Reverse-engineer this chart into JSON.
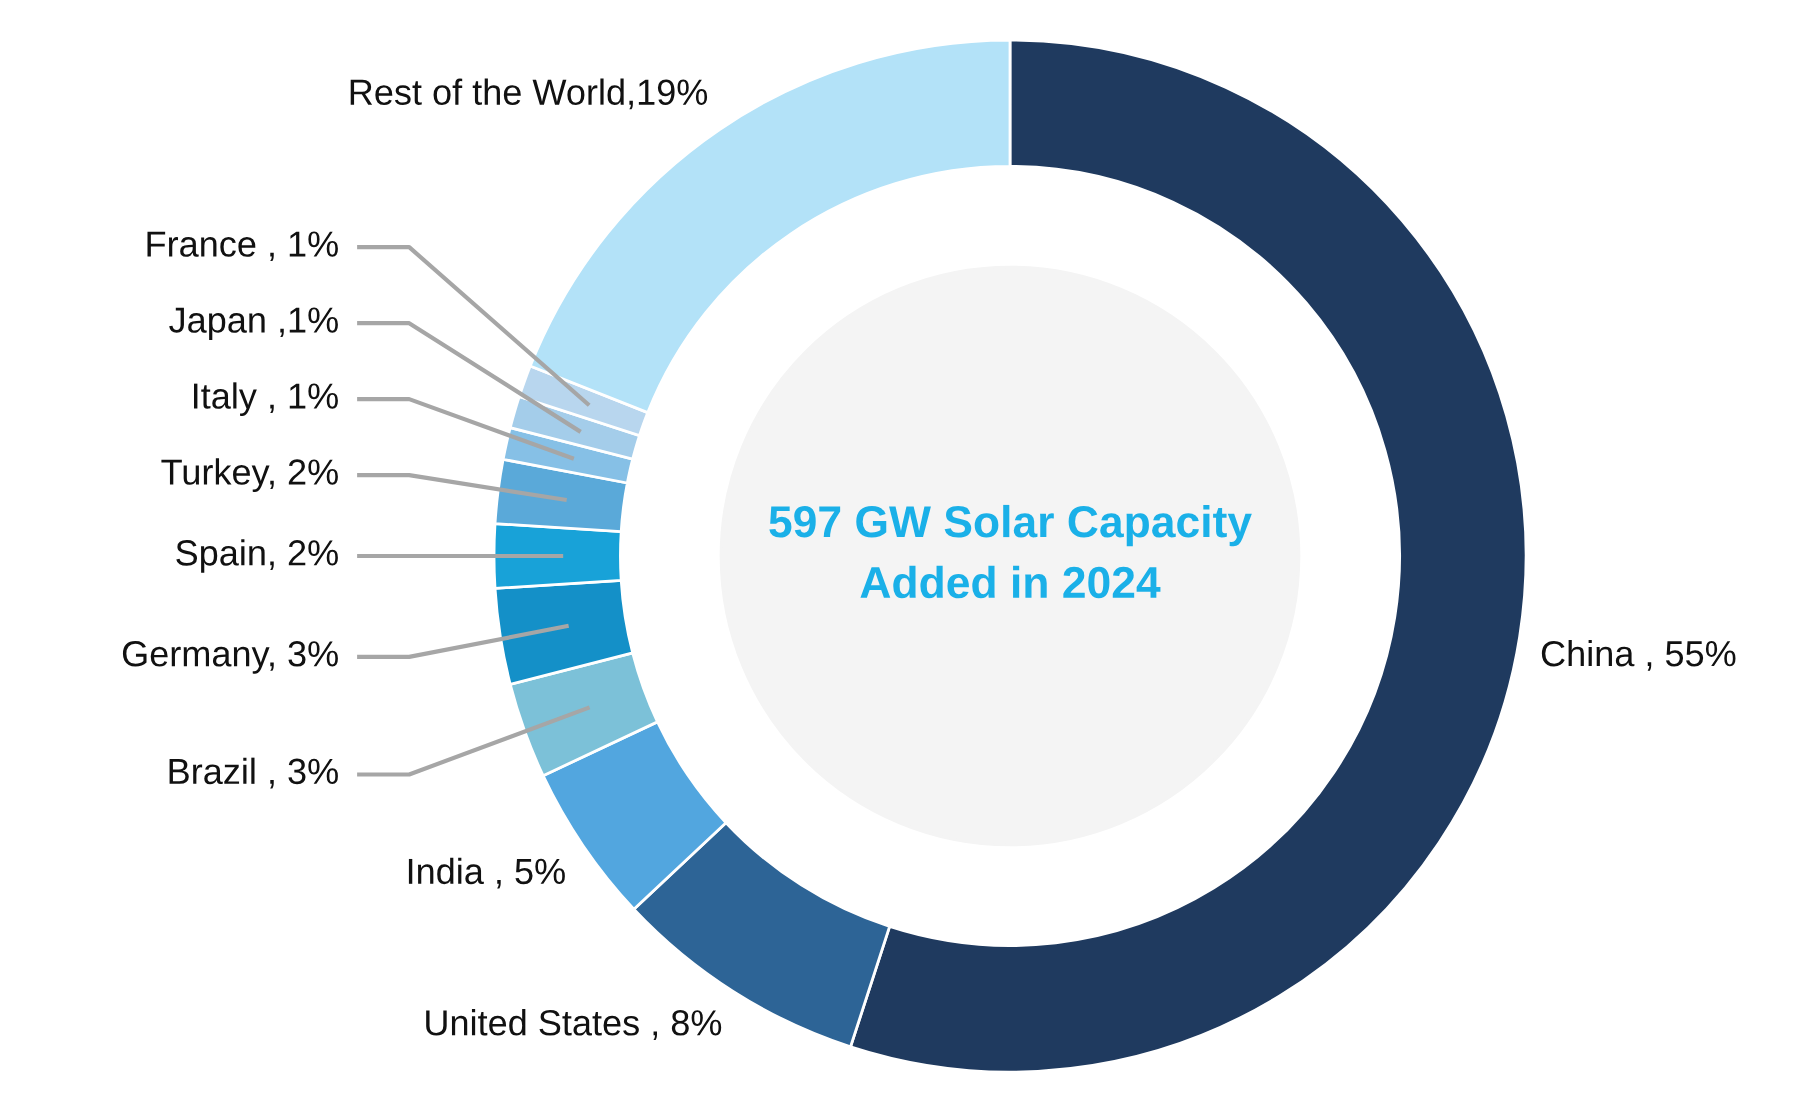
{
  "chart_data": {
    "type": "donut",
    "title": "597 GW Solar Capacity Added in 2024",
    "categories": [
      "China , 55%",
      "United States , 8%",
      "India , 5%",
      "Brazil , 3%",
      "Germany, 3%",
      "Spain, 2%",
      "Turkey, 2%",
      "Italy , 1%",
      "Japan ,1%",
      "France , 1%",
      "Rest of the World,19%"
    ],
    "values": [
      55,
      8,
      5,
      3,
      3,
      2,
      2,
      1,
      1,
      1,
      19
    ],
    "colors": [
      "#1f3a5f",
      "#2d6496",
      "#52a6df",
      "#7cc1d8",
      "#1490c8",
      "#18a2d8",
      "#5aa9d9",
      "#86c0e6",
      "#a4cdea",
      "#b8d6ee",
      "#b3e2f8"
    ]
  }
}
